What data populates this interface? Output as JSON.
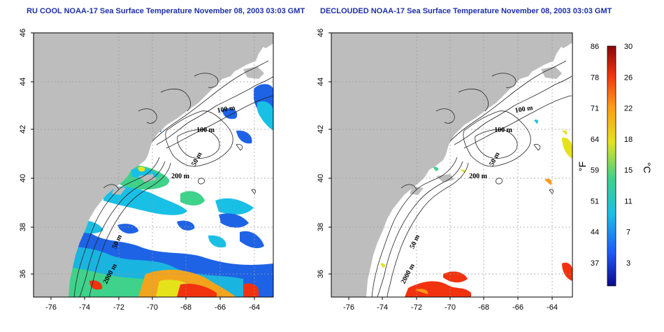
{
  "titles": {
    "left": "RU COOL NOAA-17 Sea Surface Temperature November 08, 2003 03:03 GMT",
    "right": "DECLOUDED NOAA-17 Sea Surface Temperature November 08, 2003 03:03 GMT"
  },
  "axes": {
    "lon_ticks": [
      "-76",
      "-74",
      "-72",
      "-70",
      "-68",
      "-66",
      "-64"
    ],
    "lat_ticks": [
      "46",
      "44",
      "42",
      "40",
      "38",
      "36"
    ]
  },
  "contour_labels": [
    "100 m",
    "100 m",
    "50 m",
    "200 m",
    "50 m",
    "2000 m"
  ],
  "colorbar": {
    "f_label": "°F",
    "c_label": "°C",
    "f_ticks": [
      "86",
      "78",
      "71",
      "64",
      "59",
      "51",
      "44",
      "37"
    ],
    "c_ticks": [
      "30",
      "26",
      "22",
      "18",
      "15",
      "11",
      "7",
      "3"
    ],
    "colors": [
      "#0a0a8c",
      "#1f5bff",
      "#19c0e6",
      "#3fd28a",
      "#e5e21c",
      "#ff9a14",
      "#f2320f",
      "#8c0606"
    ]
  },
  "colors": {
    "land": "#bdbdbd",
    "title": "#1d2fa8"
  }
}
